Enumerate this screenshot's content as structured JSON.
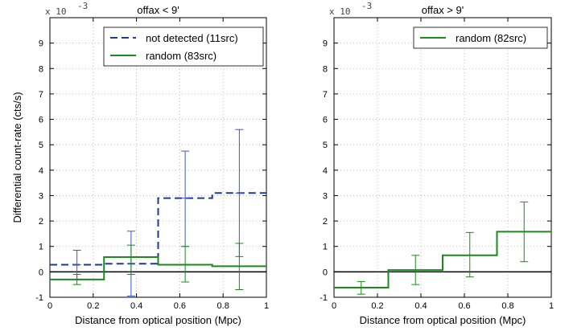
{
  "colors": {
    "not_detected": "#1f3a93",
    "random": "#1a8a1a",
    "errorbar_blue": "#3a5bbf",
    "zero_line": "#000000",
    "grid": "#b0b0b0"
  },
  "chart_data": [
    {
      "type": "step",
      "title": "offax < 9'",
      "xlabel": "Distance from optical position (Mpc)",
      "ylabel": "Differential count-rate (cts/s)",
      "y_multiplier_label": "x 10",
      "y_multiplier_exp": "-3",
      "xlim": [
        0,
        1
      ],
      "ylim": [
        -1,
        10
      ],
      "grid": true,
      "legend_position": "top-right",
      "xticks": [
        "0",
        "0.2",
        "0.4",
        "0.6",
        "0.8",
        "1"
      ],
      "yticks": [
        "-1",
        "0",
        "1",
        "2",
        "3",
        "4",
        "5",
        "6",
        "7",
        "8",
        "9"
      ],
      "bin_edges": [
        0,
        0.25,
        0.5,
        0.75,
        1.0
      ],
      "series": [
        {
          "name": "not detected (11src)",
          "style": "dashed",
          "values": [
            0.28,
            0.32,
            2.9,
            3.1
          ],
          "errors": [
            {
              "x": 0.125,
              "y": 0.28,
              "low": -0.3,
              "high": 0.85
            },
            {
              "x": 0.375,
              "y": 0.32,
              "low": -0.95,
              "high": 1.6
            },
            {
              "x": 0.625,
              "y": 2.9,
              "low": 1.0,
              "high": 4.75
            },
            {
              "x": 0.875,
              "y": 3.1,
              "low": 0.6,
              "high": 5.6
            }
          ]
        },
        {
          "name": "random (83src)",
          "style": "solid",
          "values": [
            -0.3,
            0.58,
            0.28,
            0.22
          ],
          "errors": [
            {
              "x": 0.125,
              "y": -0.3,
              "low": -0.5,
              "high": -0.1
            },
            {
              "x": 0.375,
              "y": 0.58,
              "low": -0.1,
              "high": 1.05
            },
            {
              "x": 0.625,
              "y": 0.28,
              "low": -0.4,
              "high": 1.0
            },
            {
              "x": 0.875,
              "y": 0.22,
              "low": -0.7,
              "high": 1.12
            }
          ]
        }
      ]
    },
    {
      "type": "step",
      "title": "offax > 9'",
      "xlabel": "Distance from optical position (Mpc)",
      "ylabel": "",
      "y_multiplier_label": "x 10",
      "y_multiplier_exp": "-3",
      "xlim": [
        0,
        1
      ],
      "ylim": [
        -1,
        10
      ],
      "grid": true,
      "legend_position": "top-right",
      "xticks": [
        "0",
        "0.2",
        "0.4",
        "0.6",
        "0.8",
        "1"
      ],
      "yticks": [
        "-1",
        "0",
        "1",
        "2",
        "3",
        "4",
        "5",
        "6",
        "7",
        "8",
        "9"
      ],
      "bin_edges": [
        0,
        0.25,
        0.5,
        0.75,
        1.0
      ],
      "series": [
        {
          "name": "random (82src)",
          "style": "solid",
          "values": [
            -0.62,
            0.07,
            0.65,
            1.58
          ],
          "errors": [
            {
              "x": 0.125,
              "y": -0.62,
              "low": -0.88,
              "high": -0.38
            },
            {
              "x": 0.375,
              "y": 0.07,
              "low": -0.5,
              "high": 0.65
            },
            {
              "x": 0.625,
              "y": 0.65,
              "low": -0.2,
              "high": 1.55
            },
            {
              "x": 0.875,
              "y": 1.58,
              "low": 0.4,
              "high": 2.75
            }
          ]
        }
      ]
    }
  ]
}
